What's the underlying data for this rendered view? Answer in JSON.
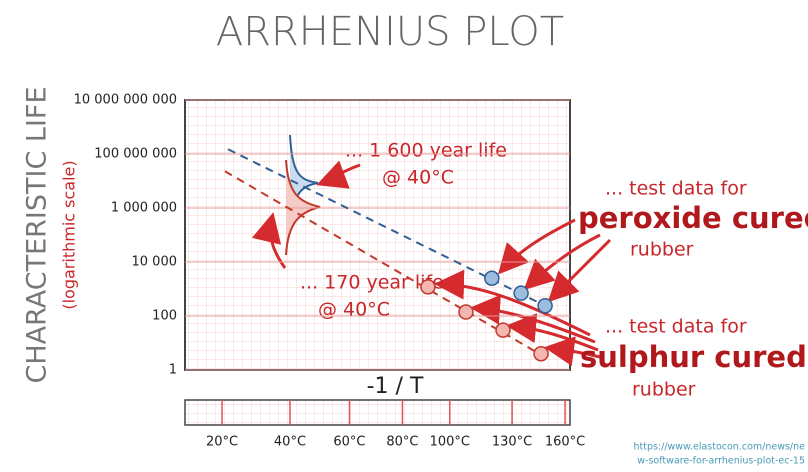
{
  "chart_data": {
    "type": "scatter",
    "title": "ARRHENIUS PLOT",
    "y_label": "CHARACTERISTIC LIFE",
    "y_sublabel": "(logarithmic scale)",
    "x_label": "-1 / T",
    "log_y": true,
    "grid": true,
    "xlim": [
      -0.00353,
      -0.002294
    ],
    "ylim": [
      1,
      10000000000
    ],
    "yticks": [
      1,
      100,
      {
        "value": 10000,
        "label": "10 000"
      },
      {
        "value": 1000000,
        "label": "1 000 000"
      },
      {
        "value": 100000000,
        "label": "100 000 000"
      },
      {
        "value": 10000000000,
        "label": "10 000 000 000"
      }
    ],
    "xticks": [
      {
        "value": -0.003411,
        "label": "20°C"
      },
      {
        "value": -0.003193,
        "label": "40°C"
      },
      {
        "value": -0.003002,
        "label": "60°C"
      },
      {
        "value": -0.002832,
        "label": "80°C"
      },
      {
        "value": -0.00268,
        "label": "100°C"
      },
      {
        "value": -0.00248,
        "label": "130°C"
      },
      {
        "value": -0.00231,
        "label": "160°C"
      }
    ],
    "series": [
      {
        "color": "#2f5f96",
        "fill": "#9dbddd",
        "x": [
          -0.002545,
          -0.002451,
          -0.002374
        ],
        "values": [
          2500,
          700,
          240
        ],
        "trend": {
          "x": [
            -0.003392,
            -0.002374
          ],
          "values": [
            150000000,
            240
          ]
        }
      },
      {
        "color": "#c0392b",
        "fill": "#f4b6b0",
        "x": [
          -0.00275,
          -0.002628,
          -0.002509,
          -0.002387
        ],
        "values": [
          1200,
          140,
          30,
          4
        ],
        "trend": {
          "x": [
            -0.003402,
            -0.002374
          ],
          "values": [
            23000000,
            3
          ]
        }
      }
    ],
    "annotations": [
      "... 1 600 year life",
      "@ 40°C",
      "... 170 year life",
      "@ 40°C",
      "... test data for",
      "peroxide cured",
      "rubber",
      "... test data for",
      "sulphur cured",
      "rubber"
    ],
    "source": [
      "https://www.elastocon.com/news/ne",
      "w-software-for-arrhenius-plot-ec-15"
    ]
  }
}
